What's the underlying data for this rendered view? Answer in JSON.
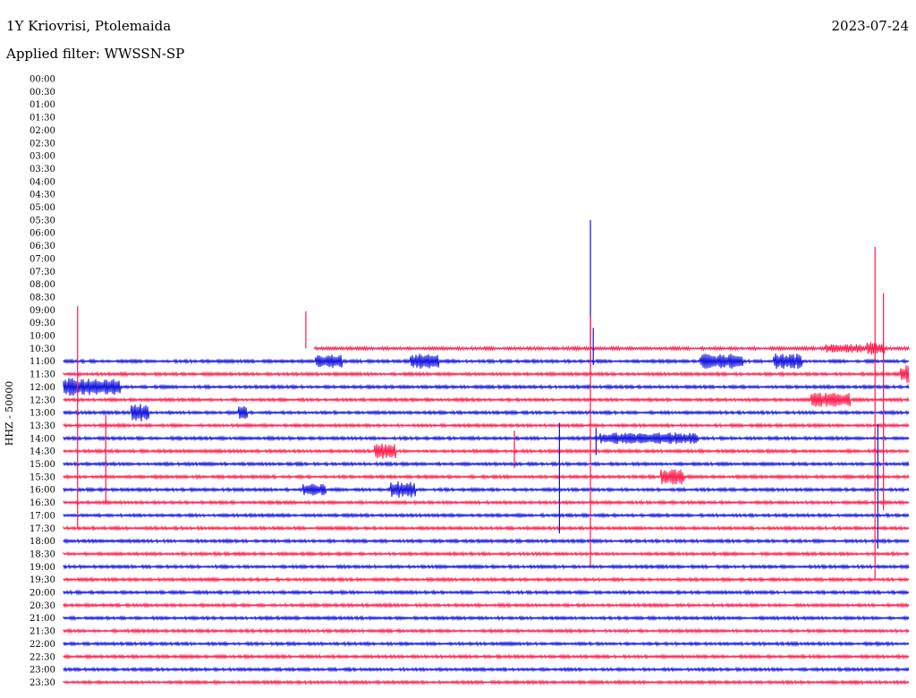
{
  "header": {
    "station": "1Y Kriovrisi, Ptolemaida",
    "date": "2023-07-24",
    "filter": "Applied filter: WWSSN-SP"
  },
  "chart_data": {
    "type": "line",
    "title": "1Y Kriovrisi, Ptolemaida",
    "ylabel": "HHZ - 50000",
    "row_labels": [
      "00:00",
      "00:30",
      "01:00",
      "01:30",
      "02:00",
      "02:30",
      "03:00",
      "03:30",
      "04:00",
      "04:30",
      "05:00",
      "05:30",
      "06:00",
      "06:30",
      "07:00",
      "07:30",
      "08:00",
      "08:30",
      "09:00",
      "09:30",
      "10:00",
      "10:30",
      "11:00",
      "11:30",
      "12:00",
      "12:30",
      "13:00",
      "13:30",
      "14:00",
      "14:30",
      "15:00",
      "15:30",
      "16:00",
      "16:30",
      "17:00",
      "17:30",
      "18:00",
      "18:30",
      "19:00",
      "19:30",
      "20:00",
      "20:30",
      "21:00",
      "21:30",
      "22:00",
      "22:30",
      "23:00",
      "23:30"
    ],
    "trace_start_row": "10:30",
    "colors": [
      "#ff1a4a",
      "#1010e0"
    ],
    "x_range_minutes": [
      0,
      30
    ],
    "events": [
      {
        "row": "10:30",
        "x_min": 8.6,
        "up": 2.9,
        "down": 0.0
      },
      {
        "row": "11:00",
        "x_min": 18.8,
        "up": 2.6,
        "down": 0.3
      },
      {
        "row": "11:00",
        "x_min": 18.7,
        "up": 11.0,
        "down": 0.4
      },
      {
        "row": "13:30",
        "x_min": 0.5,
        "up": 9.3,
        "down": 8.0
      },
      {
        "row": "14:30",
        "x_min": 18.7,
        "up": 10.5,
        "down": 9.0
      },
      {
        "row": "14:30",
        "x_min": 28.8,
        "up": 15.9,
        "down": 10.0
      },
      {
        "row": "14:30",
        "x_min": 29.1,
        "up": 12.3,
        "down": 4.6
      },
      {
        "row": "13:30",
        "x_min": 1.5,
        "up": 0.8,
        "down": 6.0
      },
      {
        "row": "15:00",
        "x_min": 17.6,
        "up": 3.2,
        "down": 5.4
      },
      {
        "row": "14:30",
        "x_min": 16.0,
        "up": 1.6,
        "down": 1.3
      },
      {
        "row": "14:00",
        "x_min": 18.9,
        "up": 0.8,
        "down": 1.3
      },
      {
        "row": "14:00",
        "x_min": 28.9,
        "up": 1.1,
        "down": 8.6
      }
    ],
    "bursts": [
      {
        "row": "11:00",
        "x_min": 8.9,
        "width_min": 1.0,
        "amp": 0.55
      },
      {
        "row": "11:00",
        "x_min": 12.3,
        "width_min": 1.0,
        "amp": 0.6
      },
      {
        "row": "11:00",
        "x_min": 22.6,
        "width_min": 1.5,
        "amp": 0.6
      },
      {
        "row": "11:00",
        "x_min": 25.2,
        "width_min": 1.0,
        "amp": 0.6
      },
      {
        "row": "11:30",
        "x_min": 29.7,
        "width_min": 0.6,
        "amp": 0.7
      },
      {
        "row": "12:00",
        "x_min": 0.0,
        "width_min": 2.0,
        "amp": 0.7
      },
      {
        "row": "12:30",
        "x_min": 26.5,
        "width_min": 1.4,
        "amp": 0.55
      },
      {
        "row": "13:00",
        "x_min": 2.4,
        "width_min": 0.6,
        "amp": 0.7
      },
      {
        "row": "13:00",
        "x_min": 6.2,
        "width_min": 0.3,
        "amp": 0.6
      },
      {
        "row": "14:00",
        "x_min": 19.0,
        "width_min": 3.5,
        "amp": 0.45
      },
      {
        "row": "14:30",
        "x_min": 11.0,
        "width_min": 0.8,
        "amp": 0.6
      },
      {
        "row": "15:30",
        "x_min": 21.2,
        "width_min": 0.8,
        "amp": 0.6
      },
      {
        "row": "16:00",
        "x_min": 8.5,
        "width_min": 0.8,
        "amp": 0.5
      },
      {
        "row": "16:00",
        "x_min": 11.6,
        "width_min": 0.9,
        "amp": 0.65
      },
      {
        "row": "10:30",
        "x_min": 27.0,
        "width_min": 1.4,
        "amp": 0.35
      },
      {
        "row": "10:30",
        "x_min": 28.5,
        "width_min": 0.6,
        "amp": 0.5
      }
    ]
  }
}
